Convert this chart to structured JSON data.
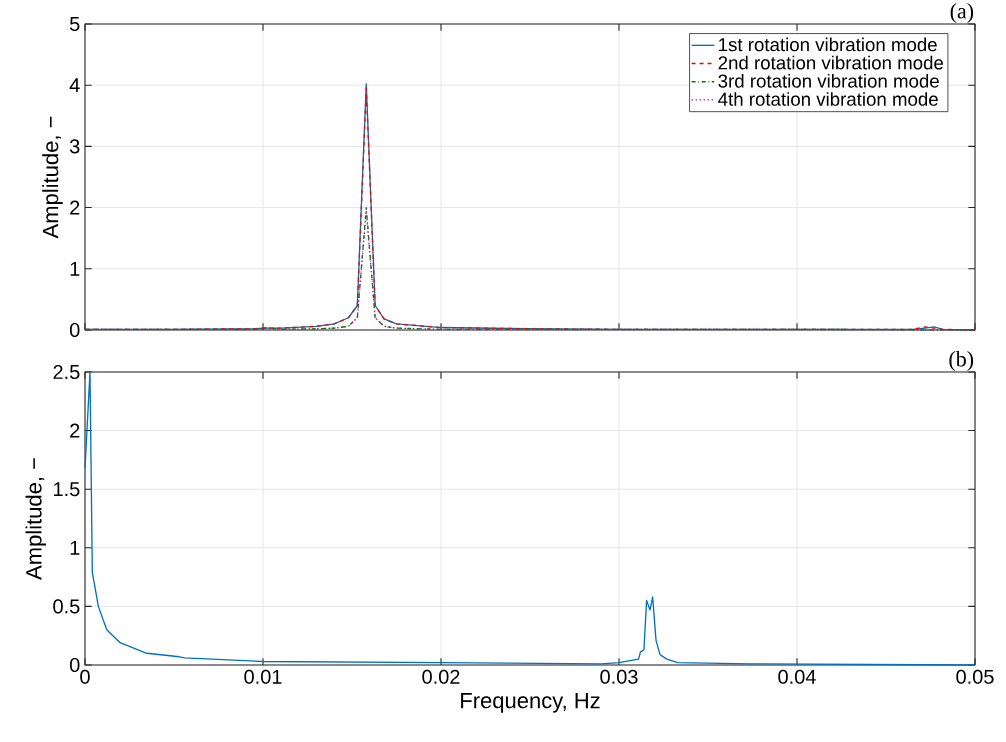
{
  "chart_data": [
    {
      "type": "line",
      "ylabel": "Amplitude, −",
      "annotations": [
        "(a)"
      ],
      "xlim": [
        0,
        0.05
      ],
      "ylim": [
        0,
        5
      ],
      "xticks": [
        0,
        0.01,
        0.02,
        0.03,
        0.04,
        0.05
      ],
      "yticks": [
        0,
        1,
        2,
        3,
        4,
        5
      ],
      "tick_labels": "y",
      "grid": true,
      "legend": "top right",
      "series": [
        {
          "name": "1st rotation vibration mode",
          "color": "#0072bd",
          "line_style": "solid",
          "x": [
            0,
            0.005,
            0.0095,
            0.0102,
            0.011,
            0.013,
            0.014,
            0.0148,
            0.0153,
            0.0158,
            0.0163,
            0.0168,
            0.0175,
            0.02,
            0.025,
            0.03,
            0.04,
            0.0465,
            0.0472,
            0.0477,
            0.0482,
            0.05
          ],
          "values": [
            0.01,
            0.01,
            0.02,
            0.03,
            0.03,
            0.06,
            0.1,
            0.2,
            0.4,
            4.02,
            0.4,
            0.18,
            0.1,
            0.04,
            0.02,
            0.01,
            0.01,
            0.01,
            0.03,
            0.05,
            0.01,
            0
          ]
        },
        {
          "name": "2nd rotation vibration mode",
          "color": "#ff0000",
          "line_style": "dashed",
          "x": [
            0,
            0.005,
            0.0095,
            0.0102,
            0.011,
            0.013,
            0.014,
            0.0148,
            0.0153,
            0.0158,
            0.0163,
            0.0168,
            0.0175,
            0.02,
            0.025,
            0.03,
            0.04,
            0.0465,
            0.0472,
            0.0477,
            0.0482,
            0.05
          ],
          "values": [
            0.01,
            0.01,
            0.02,
            0.03,
            0.03,
            0.06,
            0.1,
            0.2,
            0.4,
            3.95,
            0.4,
            0.18,
            0.1,
            0.04,
            0.02,
            0.01,
            0.01,
            0.01,
            0.05,
            0.03,
            0.01,
            0
          ]
        },
        {
          "name": "3rd rotation vibration mode",
          "color": "#008000",
          "line_style": "dashdot",
          "x": [
            0,
            0.005,
            0.0095,
            0.0102,
            0.011,
            0.013,
            0.014,
            0.0148,
            0.0153,
            0.0158,
            0.0163,
            0.0168,
            0.0175,
            0.02,
            0.03,
            0.04,
            0.05
          ],
          "values": [
            0.01,
            0.01,
            0.01,
            0.04,
            0.01,
            0.02,
            0.03,
            0.06,
            0.2,
            2.0,
            0.2,
            0.06,
            0.03,
            0.01,
            0.01,
            0.01,
            0
          ]
        },
        {
          "name": "4th rotation vibration mode",
          "color": "#bf00bf",
          "line_style": "dotted",
          "x": [
            0,
            0.005,
            0.0095,
            0.0102,
            0.011,
            0.013,
            0.014,
            0.0148,
            0.0153,
            0.0158,
            0.0163,
            0.0168,
            0.0175,
            0.02,
            0.03,
            0.04,
            0.05
          ],
          "values": [
            0.01,
            0.01,
            0.01,
            0.02,
            0.01,
            0.02,
            0.03,
            0.06,
            0.2,
            1.95,
            0.2,
            0.06,
            0.03,
            0.01,
            0.01,
            0.01,
            0
          ]
        }
      ]
    },
    {
      "type": "line",
      "xlabel": "Frequency, Hz",
      "ylabel": "Amplitude, −",
      "annotations": [
        "(b)"
      ],
      "xlim": [
        0,
        0.05
      ],
      "ylim": [
        0,
        2.5
      ],
      "xticks": [
        0,
        0.01,
        0.02,
        0.03,
        0.04,
        0.05
      ],
      "yticks": [
        0,
        0.5,
        1,
        1.5,
        2,
        2.5
      ],
      "grid": true,
      "series": [
        {
          "color": "#0072bd",
          "x": [
            0,
            0.00028,
            0.00041,
            0.00075,
            0.00122,
            0.00197,
            0.00347,
            0.0053,
            0.0056,
            0.01,
            0.02,
            0.029,
            0.03,
            0.0311,
            0.0312,
            0.0314,
            0.03155,
            0.03174,
            0.03189,
            0.03208,
            0.0323,
            0.03268,
            0.0333,
            0.0374,
            0.05
          ],
          "values": [
            1.68,
            2.5,
            0.79,
            0.5,
            0.3,
            0.19,
            0.1,
            0.07,
            0.06,
            0.03,
            0.02,
            0.01,
            0.02,
            0.05,
            0.11,
            0.13,
            0.55,
            0.47,
            0.58,
            0.21,
            0.09,
            0.05,
            0.02,
            0.01,
            0
          ]
        }
      ]
    }
  ]
}
